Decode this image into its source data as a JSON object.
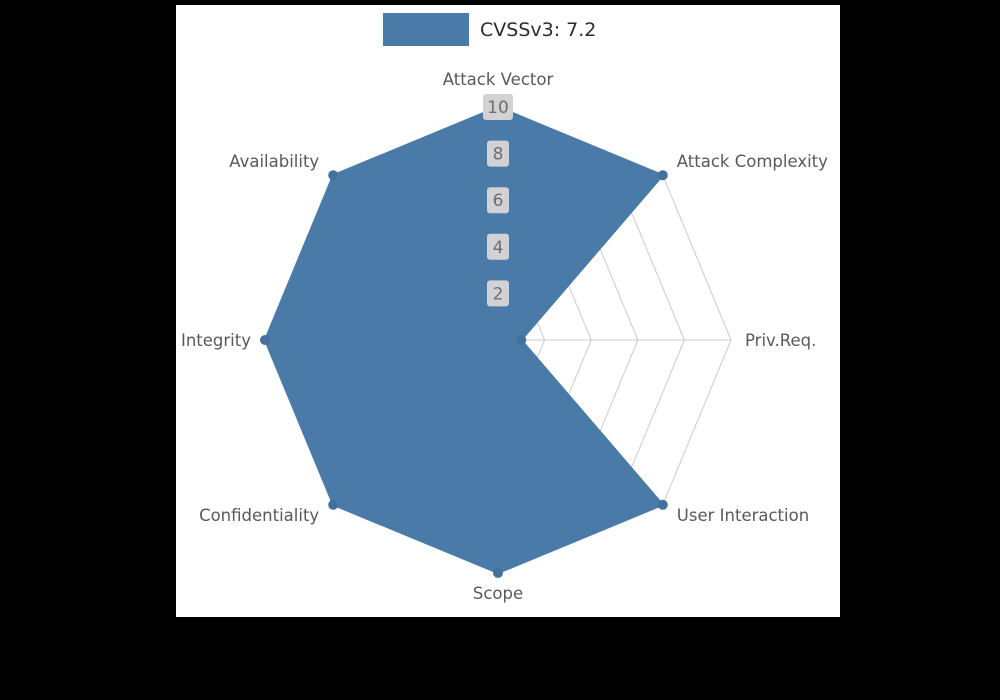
{
  "legend": {
    "label": "CVSSv3: 7.2",
    "swatch_color": "#4a7aa8"
  },
  "chart_data": {
    "type": "radar",
    "title": "CVSSv3: 7.2",
    "categories": [
      "Attack Vector",
      "Attack Complexity",
      "Priv.Req.",
      "User Interaction",
      "Scope",
      "Confidentiality",
      "Integrity",
      "Availability"
    ],
    "series": [
      {
        "name": "CVSSv3: 7.2",
        "values": [
          10,
          10,
          1,
          10,
          10,
          10,
          10,
          10
        ]
      }
    ],
    "ticks": [
      2,
      4,
      6,
      8,
      10
    ],
    "rlim": [
      0,
      10
    ],
    "grid": true,
    "grid_shape": "polygon",
    "legend_position": "top-center",
    "colors": {
      "fill": "#4a7aa8",
      "stroke": "#4a7aa8",
      "marker": "#41719c",
      "grid": "#cccccc",
      "tick_chip": "#d2d2d2",
      "tick_text": "#6e6e6e",
      "label_text": "#595959"
    }
  }
}
